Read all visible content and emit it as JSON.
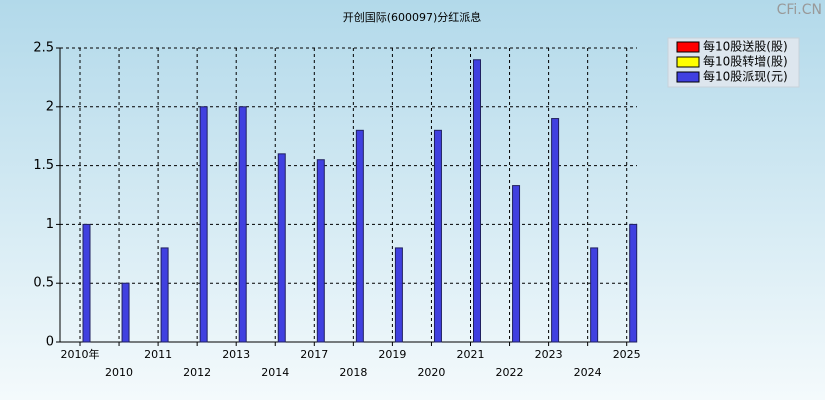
{
  "chart_data": {
    "type": "bar",
    "title": "开创国际(600097)分红派息",
    "watermark": "CFi.CN",
    "categories": [
      "2010年",
      "2010",
      "2011",
      "2012",
      "2013",
      "2014",
      "2017",
      "2018",
      "2019",
      "2020",
      "2021",
      "2022",
      "2023",
      "2024",
      "2025"
    ],
    "series": [
      {
        "name": "每10股送股(股)",
        "color": "#ff0000",
        "values": [
          null,
          null,
          null,
          null,
          null,
          null,
          null,
          null,
          null,
          null,
          null,
          null,
          null,
          null,
          null
        ]
      },
      {
        "name": "每10股转增(股)",
        "color": "#ffff00",
        "values": [
          null,
          null,
          null,
          null,
          null,
          null,
          null,
          null,
          null,
          null,
          null,
          null,
          null,
          null,
          null
        ]
      },
      {
        "name": "每10股派现(元)",
        "color": "#4040e0",
        "values": [
          1,
          0.5,
          0.8,
          2,
          2,
          1.6,
          1.55,
          1.8,
          0.8,
          1.8,
          2.4,
          1.33,
          1.9,
          0.8,
          1
        ]
      }
    ],
    "ylim": [
      0,
      2.5
    ],
    "yticks": [
      0,
      0.5,
      1,
      1.5,
      2,
      2.5
    ],
    "grid": true
  }
}
